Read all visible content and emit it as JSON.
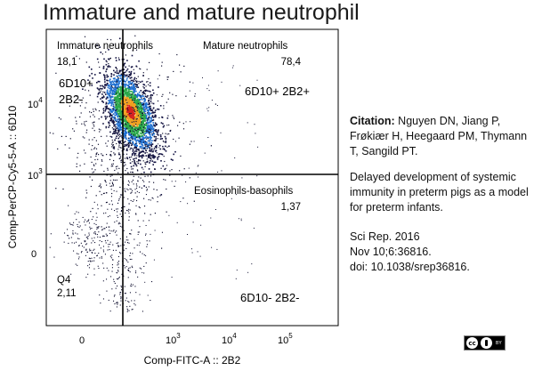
{
  "chart_data": {
    "type": "scatter",
    "title": "Immature and mature neutrophil",
    "xlabel": "Comp-FITC-A :: 2B2",
    "ylabel": "Comp-PerCP-Cy5-5-A :: 6D10",
    "x_ticks": [
      {
        "label": "0",
        "exp": ""
      },
      {
        "label": "10",
        "exp": "3"
      },
      {
        "label": "10",
        "exp": "4"
      },
      {
        "label": "10",
        "exp": "5"
      }
    ],
    "y_ticks": [
      {
        "label": "10",
        "exp": "4"
      },
      {
        "label": "10",
        "exp": "3"
      },
      {
        "label": "0",
        "exp": ""
      }
    ],
    "quadrants": [
      {
        "name": "Immature neutrophils",
        "percent": "18,1",
        "phenotype": "6D10+",
        "phenotype2": "2B2-"
      },
      {
        "name": "Mature neutrophils",
        "percent": "78,4",
        "phenotype": "6D10+ 2B2+"
      },
      {
        "name": "Eosinophils-basophils",
        "percent": "1,37"
      },
      {
        "name": "Q4",
        "percent": "2,11",
        "phenotype": "6D10- 2B2-"
      }
    ]
  },
  "citation": {
    "label": "Citation:",
    "authors": "Nguyen DN, Jiang P, Frøkiær H, Heegaard PM, Thymann T, Sangild PT.",
    "article_title": "Delayed development of systemic immunity in preterm pigs as a model for preterm infants.",
    "journal": "Sci Rep. 2016",
    "volume": "Nov 10;6:36816.",
    "doi": "doi: 10.1038/srep36816."
  },
  "license_badge": {
    "cc": "cc",
    "by": "BY"
  }
}
